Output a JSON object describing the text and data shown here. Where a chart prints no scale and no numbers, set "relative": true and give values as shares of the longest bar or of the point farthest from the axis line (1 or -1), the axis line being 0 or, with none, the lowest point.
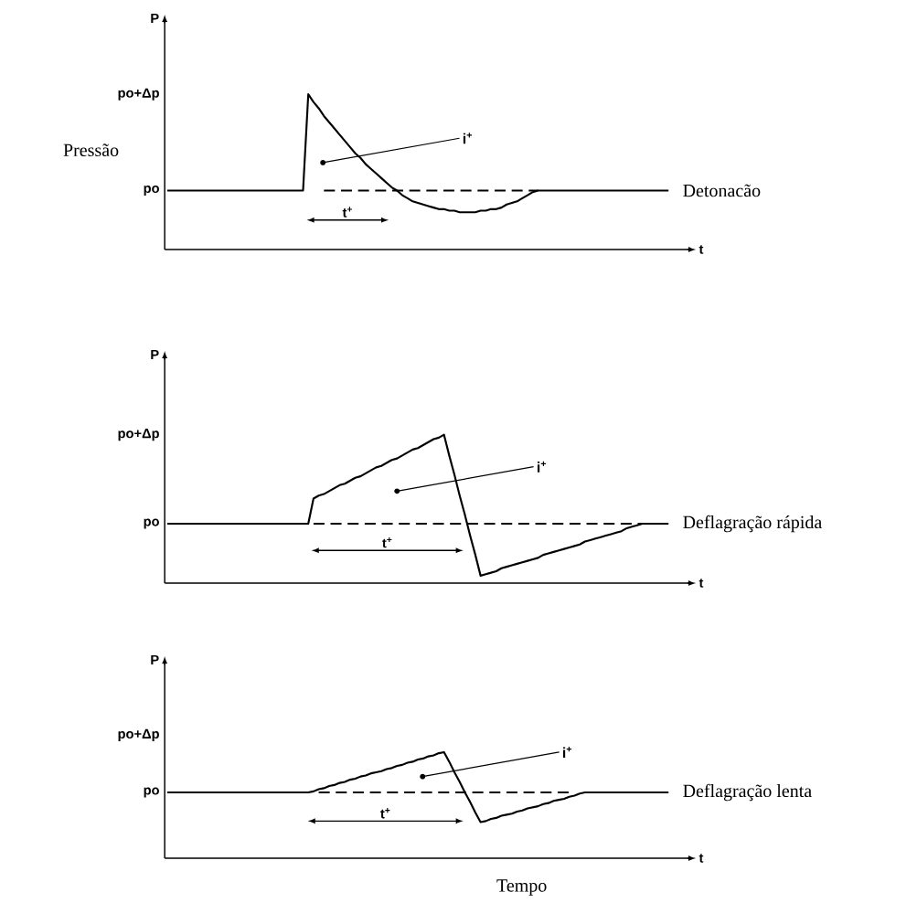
{
  "chart_data": [
    {
      "type": "line",
      "xlabel": "t",
      "ylabel": "P",
      "relative": true,
      "line_style": "solid",
      "categories": [
        null,
        null,
        null,
        null,
        null,
        null,
        null,
        null,
        null,
        null,
        null,
        null,
        null,
        null,
        null,
        null,
        null,
        null,
        null,
        null,
        null,
        null,
        null,
        null,
        null,
        null,
        null,
        null,
        null,
        null,
        null,
        null,
        null,
        null,
        null,
        null,
        null,
        null,
        null,
        null,
        null,
        null,
        null,
        null,
        null,
        null,
        null,
        null,
        null,
        null,
        null,
        null,
        null,
        null,
        null,
        null,
        null,
        null,
        null,
        null,
        null,
        null,
        null,
        null,
        null,
        null,
        null,
        null,
        null,
        null,
        null,
        null,
        null,
        null,
        null,
        null,
        null,
        null,
        null,
        null,
        null,
        null,
        null,
        null,
        null,
        null,
        null,
        null,
        null,
        null,
        null,
        null,
        null,
        null,
        null,
        null,
        null
      ],
      "series": [
        {
          "color": "#000000",
          "values": [
            0.38,
            0.38,
            0.38,
            0.38,
            0.38,
            0.38,
            0.38,
            0.38,
            0.38,
            0.38,
            0.38,
            0.38,
            0.38,
            0.38,
            0.38,
            0.38,
            0.38,
            0.38,
            0.38,
            0.38,
            0.38,
            0.38,
            0.38,
            0.38,
            0.38,
            0.38,
            0.38,
            1.0,
            0.95,
            0.91,
            0.86,
            0.82,
            0.78,
            0.74,
            0.7,
            0.66,
            0.62,
            0.59,
            0.55,
            0.52,
            0.49,
            0.46,
            0.43,
            0.4,
            0.38,
            0.35,
            0.33,
            0.31,
            0.3,
            0.29,
            0.28,
            0.27,
            0.26,
            0.26,
            0.25,
            0.25,
            0.24,
            0.24,
            0.24,
            0.24,
            0.25,
            0.25,
            0.26,
            0.26,
            0.27,
            0.29,
            0.3,
            0.31,
            0.33,
            0.35,
            0.37,
            0.38,
            0.38,
            0.38,
            0.38,
            0.38,
            0.38,
            0.38,
            0.38,
            0.38,
            0.38,
            0.38,
            0.38,
            0.38,
            0.38,
            0.38,
            0.38,
            0.38,
            0.38,
            0.38,
            0.38,
            0.38,
            0.38,
            0.38,
            0.38,
            0.38,
            0.38
          ]
        },
        {
          "color": "#000000",
          "line_style": "dashed",
          "values": [
            null,
            null,
            null,
            null,
            null,
            null,
            null,
            null,
            null,
            null,
            null,
            null,
            null,
            null,
            null,
            null,
            null,
            null,
            null,
            null,
            null,
            null,
            null,
            null,
            null,
            null,
            null,
            null,
            null,
            null,
            0.38,
            0.38,
            0.38,
            0.38,
            0.38,
            0.38,
            0.38,
            0.38,
            0.38,
            0.38,
            0.38,
            0.38,
            0.38,
            0.38,
            0.38,
            0.38,
            0.38,
            0.38,
            0.38,
            0.38,
            0.38,
            0.38,
            0.38,
            0.38,
            0.38,
            0.38,
            0.38,
            0.38,
            0.38,
            0.38,
            0.38,
            0.38,
            0.38,
            0.38,
            0.38,
            0.38,
            0.38,
            0.38,
            0.38,
            0.38,
            0.38,
            0.38,
            null,
            null,
            null,
            null,
            null,
            null,
            null,
            null,
            null,
            null,
            null,
            null,
            null,
            null,
            null,
            null,
            null,
            null,
            null,
            null,
            null,
            null,
            null,
            null,
            null
          ]
        }
      ],
      "annotations": [
        "po+Δp",
        "po",
        "i$^{+}$",
        "t$^{+}$",
        "Detonacão",
        "Pressão"
      ]
    },
    {
      "type": "line",
      "xlabel": "t",
      "ylabel": "P",
      "relative": true,
      "line_style": "solid",
      "categories": [
        null,
        null,
        null,
        null,
        null,
        null,
        null,
        null,
        null,
        null,
        null,
        null,
        null,
        null,
        null,
        null,
        null,
        null,
        null,
        null,
        null,
        null,
        null,
        null,
        null,
        null,
        null,
        null,
        null,
        null,
        null,
        null,
        null,
        null,
        null,
        null,
        null,
        null,
        null,
        null,
        null,
        null,
        null,
        null,
        null,
        null,
        null,
        null,
        null,
        null,
        null,
        null,
        null,
        null,
        null,
        null,
        null,
        null,
        null,
        null,
        null,
        null,
        null,
        null,
        null,
        null,
        null,
        null,
        null,
        null,
        null,
        null,
        null,
        null,
        null,
        null,
        null,
        null,
        null,
        null,
        null,
        null,
        null,
        null,
        null,
        null,
        null,
        null,
        null,
        null,
        null,
        null,
        null,
        null,
        null,
        null,
        null
      ],
      "series": [
        {
          "color": "#000000",
          "values": [
            0.4,
            0.4,
            0.4,
            0.4,
            0.4,
            0.4,
            0.4,
            0.4,
            0.4,
            0.4,
            0.4,
            0.4,
            0.4,
            0.4,
            0.4,
            0.4,
            0.4,
            0.4,
            0.4,
            0.4,
            0.4,
            0.4,
            0.4,
            0.4,
            0.4,
            0.4,
            0.4,
            0.4,
            0.57,
            0.59,
            0.6,
            0.62,
            0.64,
            0.66,
            0.67,
            0.69,
            0.71,
            0.72,
            0.74,
            0.76,
            0.78,
            0.79,
            0.81,
            0.83,
            0.84,
            0.86,
            0.88,
            0.9,
            0.91,
            0.93,
            0.95,
            0.97,
            0.98,
            1.0,
            0.86,
            0.73,
            0.59,
            0.46,
            0.32,
            0.19,
            0.05,
            0.06,
            0.07,
            0.08,
            0.1,
            0.11,
            0.12,
            0.13,
            0.14,
            0.15,
            0.16,
            0.17,
            0.19,
            0.2,
            0.21,
            0.22,
            0.23,
            0.24,
            0.25,
            0.26,
            0.28,
            0.29,
            0.3,
            0.31,
            0.32,
            0.33,
            0.34,
            0.35,
            0.37,
            0.38,
            0.39,
            0.4,
            0.4,
            0.4,
            0.4,
            0.4,
            0.4
          ]
        },
        {
          "color": "#000000",
          "line_style": "dashed",
          "values": [
            null,
            null,
            null,
            null,
            null,
            null,
            null,
            null,
            null,
            null,
            null,
            null,
            null,
            null,
            null,
            null,
            null,
            null,
            null,
            null,
            null,
            null,
            null,
            null,
            null,
            null,
            null,
            null,
            0.4,
            0.4,
            0.4,
            0.4,
            0.4,
            0.4,
            0.4,
            0.4,
            0.4,
            0.4,
            0.4,
            0.4,
            0.4,
            0.4,
            0.4,
            0.4,
            0.4,
            0.4,
            0.4,
            0.4,
            0.4,
            0.4,
            0.4,
            0.4,
            0.4,
            0.4,
            0.4,
            0.4,
            0.4,
            0.4,
            0.4,
            0.4,
            0.4,
            0.4,
            0.4,
            0.4,
            0.4,
            0.4,
            0.4,
            0.4,
            0.4,
            0.4,
            0.4,
            0.4,
            0.4,
            0.4,
            0.4,
            0.4,
            0.4,
            0.4,
            0.4,
            0.4,
            0.4,
            0.4,
            0.4,
            0.4,
            0.4,
            0.4,
            0.4,
            0.4,
            0.4,
            0.4,
            0.4,
            0.4,
            null,
            null,
            null,
            null,
            null
          ]
        }
      ],
      "annotations": [
        "po+Δp",
        "po",
        "i$^{+}$",
        "t$^{+}$",
        "Deflagração rápida"
      ]
    },
    {
      "type": "line",
      "xlabel": "t",
      "ylabel": "P",
      "relative": true,
      "line_style": "solid",
      "categories": [
        null,
        null,
        null,
        null,
        null,
        null,
        null,
        null,
        null,
        null,
        null,
        null,
        null,
        null,
        null,
        null,
        null,
        null,
        null,
        null,
        null,
        null,
        null,
        null,
        null,
        null,
        null,
        null,
        null,
        null,
        null,
        null,
        null,
        null,
        null,
        null,
        null,
        null,
        null,
        null,
        null,
        null,
        null,
        null,
        null,
        null,
        null,
        null,
        null,
        null,
        null,
        null,
        null,
        null,
        null,
        null,
        null,
        null,
        null,
        null,
        null,
        null,
        null,
        null,
        null,
        null,
        null,
        null,
        null,
        null,
        null,
        null,
        null,
        null,
        null,
        null,
        null,
        null,
        null,
        null,
        null,
        null,
        null,
        null,
        null,
        null,
        null,
        null,
        null,
        null,
        null,
        null,
        null,
        null,
        null,
        null,
        null
      ],
      "series": [
        {
          "color": "#000000",
          "values": [
            0.62,
            0.62,
            0.62,
            0.62,
            0.62,
            0.62,
            0.62,
            0.62,
            0.62,
            0.62,
            0.62,
            0.62,
            0.62,
            0.62,
            0.62,
            0.62,
            0.62,
            0.62,
            0.62,
            0.62,
            0.62,
            0.62,
            0.62,
            0.62,
            0.62,
            0.62,
            0.62,
            0.62,
            0.63,
            0.65,
            0.66,
            0.68,
            0.69,
            0.71,
            0.72,
            0.74,
            0.75,
            0.77,
            0.78,
            0.8,
            0.81,
            0.82,
            0.84,
            0.85,
            0.87,
            0.88,
            0.9,
            0.91,
            0.93,
            0.94,
            0.96,
            0.97,
            0.99,
            1.0,
            0.91,
            0.81,
            0.72,
            0.62,
            0.53,
            0.43,
            0.34,
            0.35,
            0.37,
            0.38,
            0.4,
            0.41,
            0.42,
            0.44,
            0.45,
            0.47,
            0.48,
            0.49,
            0.51,
            0.52,
            0.54,
            0.55,
            0.56,
            0.58,
            0.59,
            0.61,
            0.62,
            0.62,
            0.62,
            0.62,
            0.62,
            0.62,
            0.62,
            0.62,
            0.62,
            0.62,
            0.62,
            0.62,
            0.62,
            0.62,
            0.62,
            0.62,
            0.62
          ]
        },
        {
          "color": "#000000",
          "line_style": "dashed",
          "values": [
            null,
            null,
            null,
            null,
            null,
            null,
            null,
            null,
            null,
            null,
            null,
            null,
            null,
            null,
            null,
            null,
            null,
            null,
            null,
            null,
            null,
            null,
            null,
            null,
            null,
            null,
            null,
            null,
            null,
            0.62,
            0.62,
            0.62,
            0.62,
            0.62,
            0.62,
            0.62,
            0.62,
            0.62,
            0.62,
            0.62,
            0.62,
            0.62,
            0.62,
            0.62,
            0.62,
            0.62,
            0.62,
            0.62,
            0.62,
            0.62,
            0.62,
            0.62,
            0.62,
            0.62,
            0.62,
            0.62,
            0.62,
            0.62,
            0.62,
            0.62,
            0.62,
            0.62,
            0.62,
            0.62,
            0.62,
            0.62,
            0.62,
            0.62,
            0.62,
            0.62,
            0.62,
            0.62,
            0.62,
            0.62,
            0.62,
            0.62,
            0.62,
            0.62,
            0.62,
            null,
            null,
            null,
            null,
            null,
            null,
            null,
            null,
            null,
            null,
            null,
            null,
            null,
            null,
            null,
            null,
            null,
            null
          ]
        }
      ],
      "annotations": [
        "po+Δp",
        "po",
        "i$^{+}$",
        "t$^{+}$",
        "Deflagração lenta",
        "Tempo"
      ]
    }
  ]
}
